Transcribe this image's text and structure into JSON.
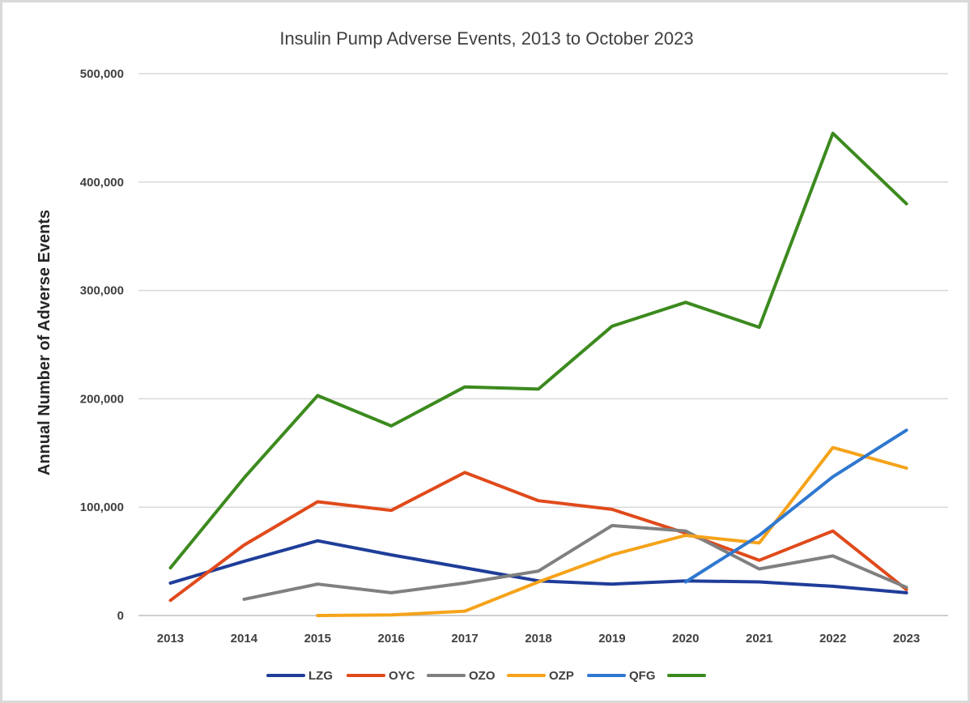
{
  "chart_data": {
    "type": "line",
    "title": "Insulin Pump Adverse Events, 2013 to October 2023",
    "xlabel": "",
    "ylabel": "Annual Number of Adverse Events",
    "ylim": [
      0,
      500000
    ],
    "yticks": [
      0,
      100000,
      200000,
      300000,
      400000,
      500000
    ],
    "ytick_labels": [
      "0",
      "100,000",
      "200,000",
      "300,000",
      "400,000",
      "500,000"
    ],
    "grid": true,
    "legend_position": "bottom",
    "categories": [
      "2013",
      "2014",
      "2015",
      "2016",
      "2017",
      "2018",
      "2019",
      "2020",
      "2021",
      "2022",
      "2023"
    ],
    "series": [
      {
        "name": "LZG",
        "color": "#1f3d99",
        "values": [
          30000,
          50000,
          69000,
          56000,
          44000,
          32000,
          29000,
          32000,
          31000,
          27000,
          21000
        ]
      },
      {
        "name": "OYC",
        "color": "#e04a1b",
        "values": [
          14000,
          65000,
          105000,
          97000,
          132000,
          106000,
          98000,
          76000,
          51000,
          78000,
          24000
        ]
      },
      {
        "name": "OZO",
        "color": "#808080",
        "values": [
          null,
          15000,
          29000,
          21000,
          30000,
          41000,
          83000,
          78000,
          43000,
          55000,
          26000
        ]
      },
      {
        "name": "OZP",
        "color": "#f5a31a",
        "values": [
          null,
          null,
          0,
          500,
          4000,
          31000,
          56000,
          74000,
          67000,
          155000,
          136000
        ]
      },
      {
        "name": "QFG",
        "color": "#2f78d0",
        "values": [
          null,
          null,
          null,
          null,
          null,
          null,
          null,
          31000,
          74000,
          128000,
          171000
        ]
      },
      {
        "name": "",
        "color": "#3c8a1e",
        "values": [
          44000,
          127000,
          203000,
          175000,
          211000,
          209000,
          267000,
          289000,
          266000,
          445000,
          380000
        ]
      }
    ]
  }
}
